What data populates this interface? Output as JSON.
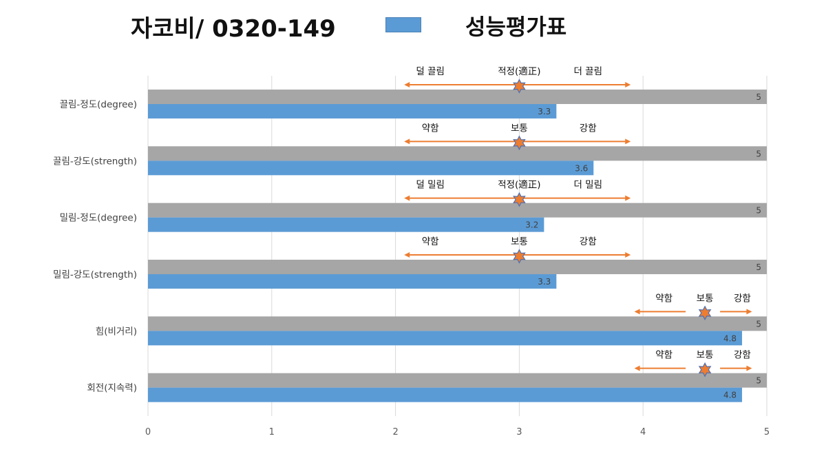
{
  "header": {
    "title": "자코비/ 0320-149",
    "legend_label": "성능평가표"
  },
  "colors": {
    "max_bar": "#a6a6a6",
    "value_bar": "#5b9bd5",
    "arrow": "#ed7d31",
    "star_fill": "#ed7d31",
    "star_stroke": "#4f6fb0",
    "grid": "#d9d9d9"
  },
  "chart_data": {
    "type": "bar",
    "orientation": "horizontal",
    "xlim": [
      0,
      5
    ],
    "x_ticks": [
      "0",
      "1",
      "2",
      "3",
      "4",
      "5"
    ],
    "grid": true,
    "legend": "top",
    "categories": [
      "끌림-정도(degree)",
      "끌림-강도(strength)",
      "밀림-정도(degree)",
      "밀림-강도(strength)",
      "힘(비거리)",
      "회전(지속력)"
    ],
    "series": [
      {
        "name": "",
        "values": [
          5,
          5,
          5,
          5,
          5,
          5
        ]
      },
      {
        "name": "성능평가표",
        "values": [
          3.3,
          3.6,
          3.2,
          3.3,
          4.8,
          4.8
        ]
      }
    ],
    "value_labels_max": [
      "5",
      "5",
      "5",
      "5",
      "5",
      "5"
    ],
    "value_labels": [
      "3.3",
      "3.6",
      "3.2",
      "3.3",
      "4.8",
      "4.8"
    ],
    "annotations": [
      {
        "left": "덜 끌림",
        "center": "적정(適正)",
        "right": "더 끌림",
        "marker": 3.0,
        "from": 2.07,
        "to": 3.9
      },
      {
        "left": "약함",
        "center": "보통",
        "right": "강함",
        "marker": 3.0,
        "from": 2.07,
        "to": 3.9
      },
      {
        "left": "덜 밀림",
        "center": "적정(適正)",
        "right": "더 밀림",
        "marker": 3.0,
        "from": 2.07,
        "to": 3.9
      },
      {
        "left": "약함",
        "center": "보통",
        "right": "강함",
        "marker": 3.0,
        "from": 2.07,
        "to": 3.9
      },
      {
        "left": "약함",
        "center": "보통",
        "right": "강함",
        "marker": 4.5,
        "from": 3.93,
        "to": 4.88
      },
      {
        "left": "약함",
        "center": "보통",
        "right": "강함",
        "marker": 4.5,
        "from": 3.93,
        "to": 4.88
      }
    ]
  }
}
